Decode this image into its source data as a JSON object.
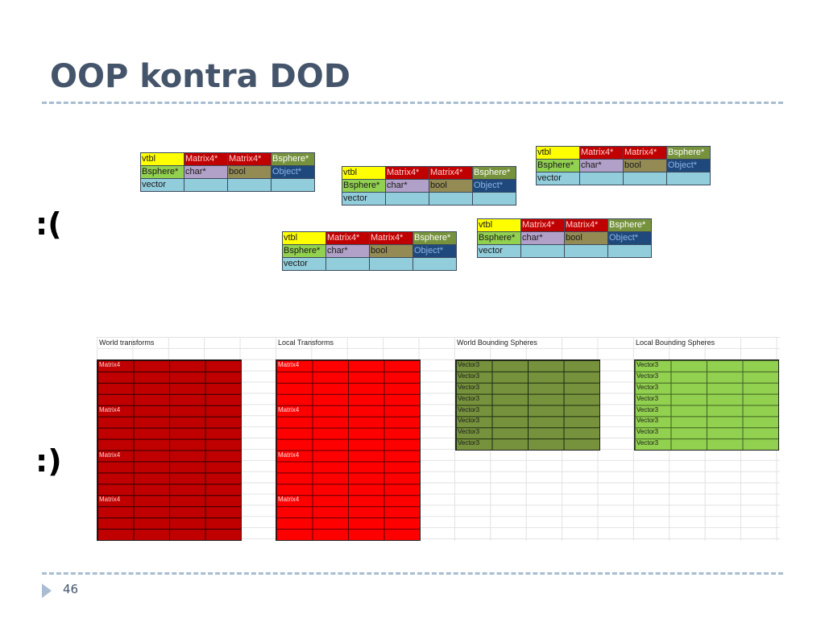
{
  "slide": {
    "title": "OOP kontra DOD",
    "sad_face": ":(",
    "happy_face": ":)",
    "page_number": "46"
  },
  "object_table": {
    "rows": [
      [
        "vtbl",
        "Matrix4*",
        "Matrix4*",
        "Bsphere*"
      ],
      [
        "Bsphere*",
        "char*",
        "bool",
        "Object*"
      ],
      [
        "vector",
        "",
        "",
        ""
      ]
    ]
  },
  "soa": {
    "world_transforms": {
      "header": "World transforms",
      "cell": "Matrix4"
    },
    "local_transforms": {
      "header": "Local Transforms",
      "cell": "Matrix4"
    },
    "world_spheres": {
      "header": "World Bounding Spheres",
      "cell": "Vector3"
    },
    "local_spheres": {
      "header": "Local Bounding Spheres",
      "cell": "Vector3"
    }
  },
  "colors": {
    "title": "#44546a",
    "dark_red": "#c00000",
    "bright_red": "#ff0000",
    "olive_green": "#76923c",
    "light_green": "#92d050",
    "accent_dash": "#a8bdd1"
  }
}
